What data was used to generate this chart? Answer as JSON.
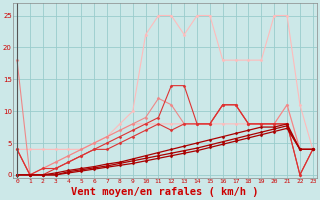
{
  "background_color": "#cce8e8",
  "grid_color": "#99cccc",
  "xlabel": "Vent moyen/en rafales ( km/h )",
  "xlabel_color": "#cc0000",
  "xlabel_fontsize": 7.5,
  "yticks": [
    0,
    5,
    10,
    15,
    20,
    25
  ],
  "xticks": [
    0,
    1,
    2,
    3,
    4,
    5,
    6,
    7,
    8,
    9,
    10,
    11,
    12,
    13,
    14,
    15,
    16,
    17,
    18,
    19,
    20,
    21,
    22,
    23
  ],
  "ylim": [
    -0.5,
    27
  ],
  "xlim": [
    -0.3,
    23.3
  ],
  "series": [
    {
      "x": [
        0,
        1,
        2,
        3,
        4,
        5,
        6,
        7,
        8,
        9,
        10,
        11,
        12,
        13,
        14,
        15,
        16,
        17,
        18,
        19,
        20,
        21,
        22,
        23
      ],
      "y": [
        4,
        0,
        1,
        2,
        3,
        4,
        5,
        6,
        8,
        10,
        22,
        25,
        25,
        22,
        25,
        25,
        18,
        18,
        18,
        18,
        25,
        25,
        11,
        4
      ],
      "color": "#ffbbbb",
      "lw": 0.8,
      "marker": "D",
      "ms": 1.5
    },
    {
      "x": [
        0,
        1,
        2,
        3,
        4,
        5,
        6,
        7,
        8,
        9,
        10,
        11,
        12,
        13,
        14,
        15,
        16,
        17,
        18,
        19,
        20,
        21,
        22,
        23
      ],
      "y": [
        4,
        4,
        4,
        4,
        4,
        4,
        5,
        6,
        7,
        8,
        8,
        8,
        8,
        8,
        8,
        8,
        8,
        8,
        8,
        8,
        8,
        11,
        4,
        4
      ],
      "color": "#ffbbbb",
      "lw": 0.8,
      "marker": "D",
      "ms": 1.5
    },
    {
      "x": [
        0,
        1,
        2,
        3,
        4,
        5,
        6,
        7,
        8,
        9,
        10,
        11,
        12,
        13,
        14,
        15,
        16,
        17,
        18,
        19,
        20,
        21,
        22,
        23
      ],
      "y": [
        18,
        0,
        1,
        2,
        3,
        4,
        5,
        6,
        7,
        8,
        9,
        12,
        11,
        8,
        8,
        8,
        11,
        11,
        8,
        8,
        8,
        11,
        4,
        4
      ],
      "color": "#ee8888",
      "lw": 0.8,
      "marker": "D",
      "ms": 1.5
    },
    {
      "x": [
        0,
        1,
        2,
        3,
        4,
        5,
        6,
        7,
        8,
        9,
        10,
        11,
        12,
        13,
        14,
        15,
        16,
        17,
        18,
        19,
        20,
        21,
        22,
        23
      ],
      "y": [
        4,
        0,
        1,
        1,
        2,
        3,
        4,
        5,
        6,
        7,
        8,
        9,
        14,
        14,
        8,
        8,
        11,
        11,
        8,
        8,
        8,
        8,
        0,
        4
      ],
      "color": "#dd3333",
      "lw": 0.8,
      "marker": "D",
      "ms": 1.5
    },
    {
      "x": [
        0,
        1,
        2,
        3,
        4,
        5,
        6,
        7,
        8,
        9,
        10,
        11,
        12,
        13,
        14,
        15,
        16,
        17,
        18,
        19,
        20,
        21,
        22,
        23
      ],
      "y": [
        4,
        0,
        0,
        1,
        2,
        3,
        4,
        4,
        5,
        6,
        7,
        8,
        7,
        8,
        8,
        8,
        11,
        11,
        8,
        8,
        8,
        8,
        0,
        4
      ],
      "color": "#dd3333",
      "lw": 0.8,
      "marker": "D",
      "ms": 1.5
    },
    {
      "x": [
        0,
        1,
        2,
        3,
        4,
        5,
        6,
        7,
        8,
        9,
        10,
        11,
        12,
        13,
        14,
        15,
        16,
        17,
        18,
        19,
        20,
        21,
        22,
        23
      ],
      "y": [
        0,
        0,
        0,
        0.3,
        0.7,
        1.0,
        1.3,
        1.7,
        2.0,
        2.5,
        3.0,
        3.5,
        4.0,
        4.5,
        5.0,
        5.5,
        6.0,
        6.5,
        7.0,
        7.5,
        7.5,
        8.0,
        4,
        4
      ],
      "color": "#aa0000",
      "lw": 0.9,
      "marker": "D",
      "ms": 1.5
    },
    {
      "x": [
        0,
        1,
        2,
        3,
        4,
        5,
        6,
        7,
        8,
        9,
        10,
        11,
        12,
        13,
        14,
        15,
        16,
        17,
        18,
        19,
        20,
        21,
        22,
        23
      ],
      "y": [
        0,
        0,
        0,
        0,
        0.5,
        0.8,
        1.1,
        1.4,
        1.8,
        2.2,
        2.6,
        3.0,
        3.4,
        3.8,
        4.2,
        4.7,
        5.2,
        5.7,
        6.2,
        6.7,
        7.2,
        7.7,
        4,
        4
      ],
      "color": "#aa0000",
      "lw": 0.9,
      "marker": "D",
      "ms": 1.5
    },
    {
      "x": [
        0,
        1,
        2,
        3,
        4,
        5,
        6,
        7,
        8,
        9,
        10,
        11,
        12,
        13,
        14,
        15,
        16,
        17,
        18,
        19,
        20,
        21,
        22,
        23
      ],
      "y": [
        0,
        0,
        0,
        0,
        0.3,
        0.6,
        0.9,
        1.2,
        1.5,
        1.8,
        2.2,
        2.6,
        3.0,
        3.4,
        3.8,
        4.3,
        4.8,
        5.3,
        5.8,
        6.3,
        6.8,
        7.3,
        4,
        4
      ],
      "color": "#aa0000",
      "lw": 0.9,
      "marker": "D",
      "ms": 1.5
    }
  ]
}
